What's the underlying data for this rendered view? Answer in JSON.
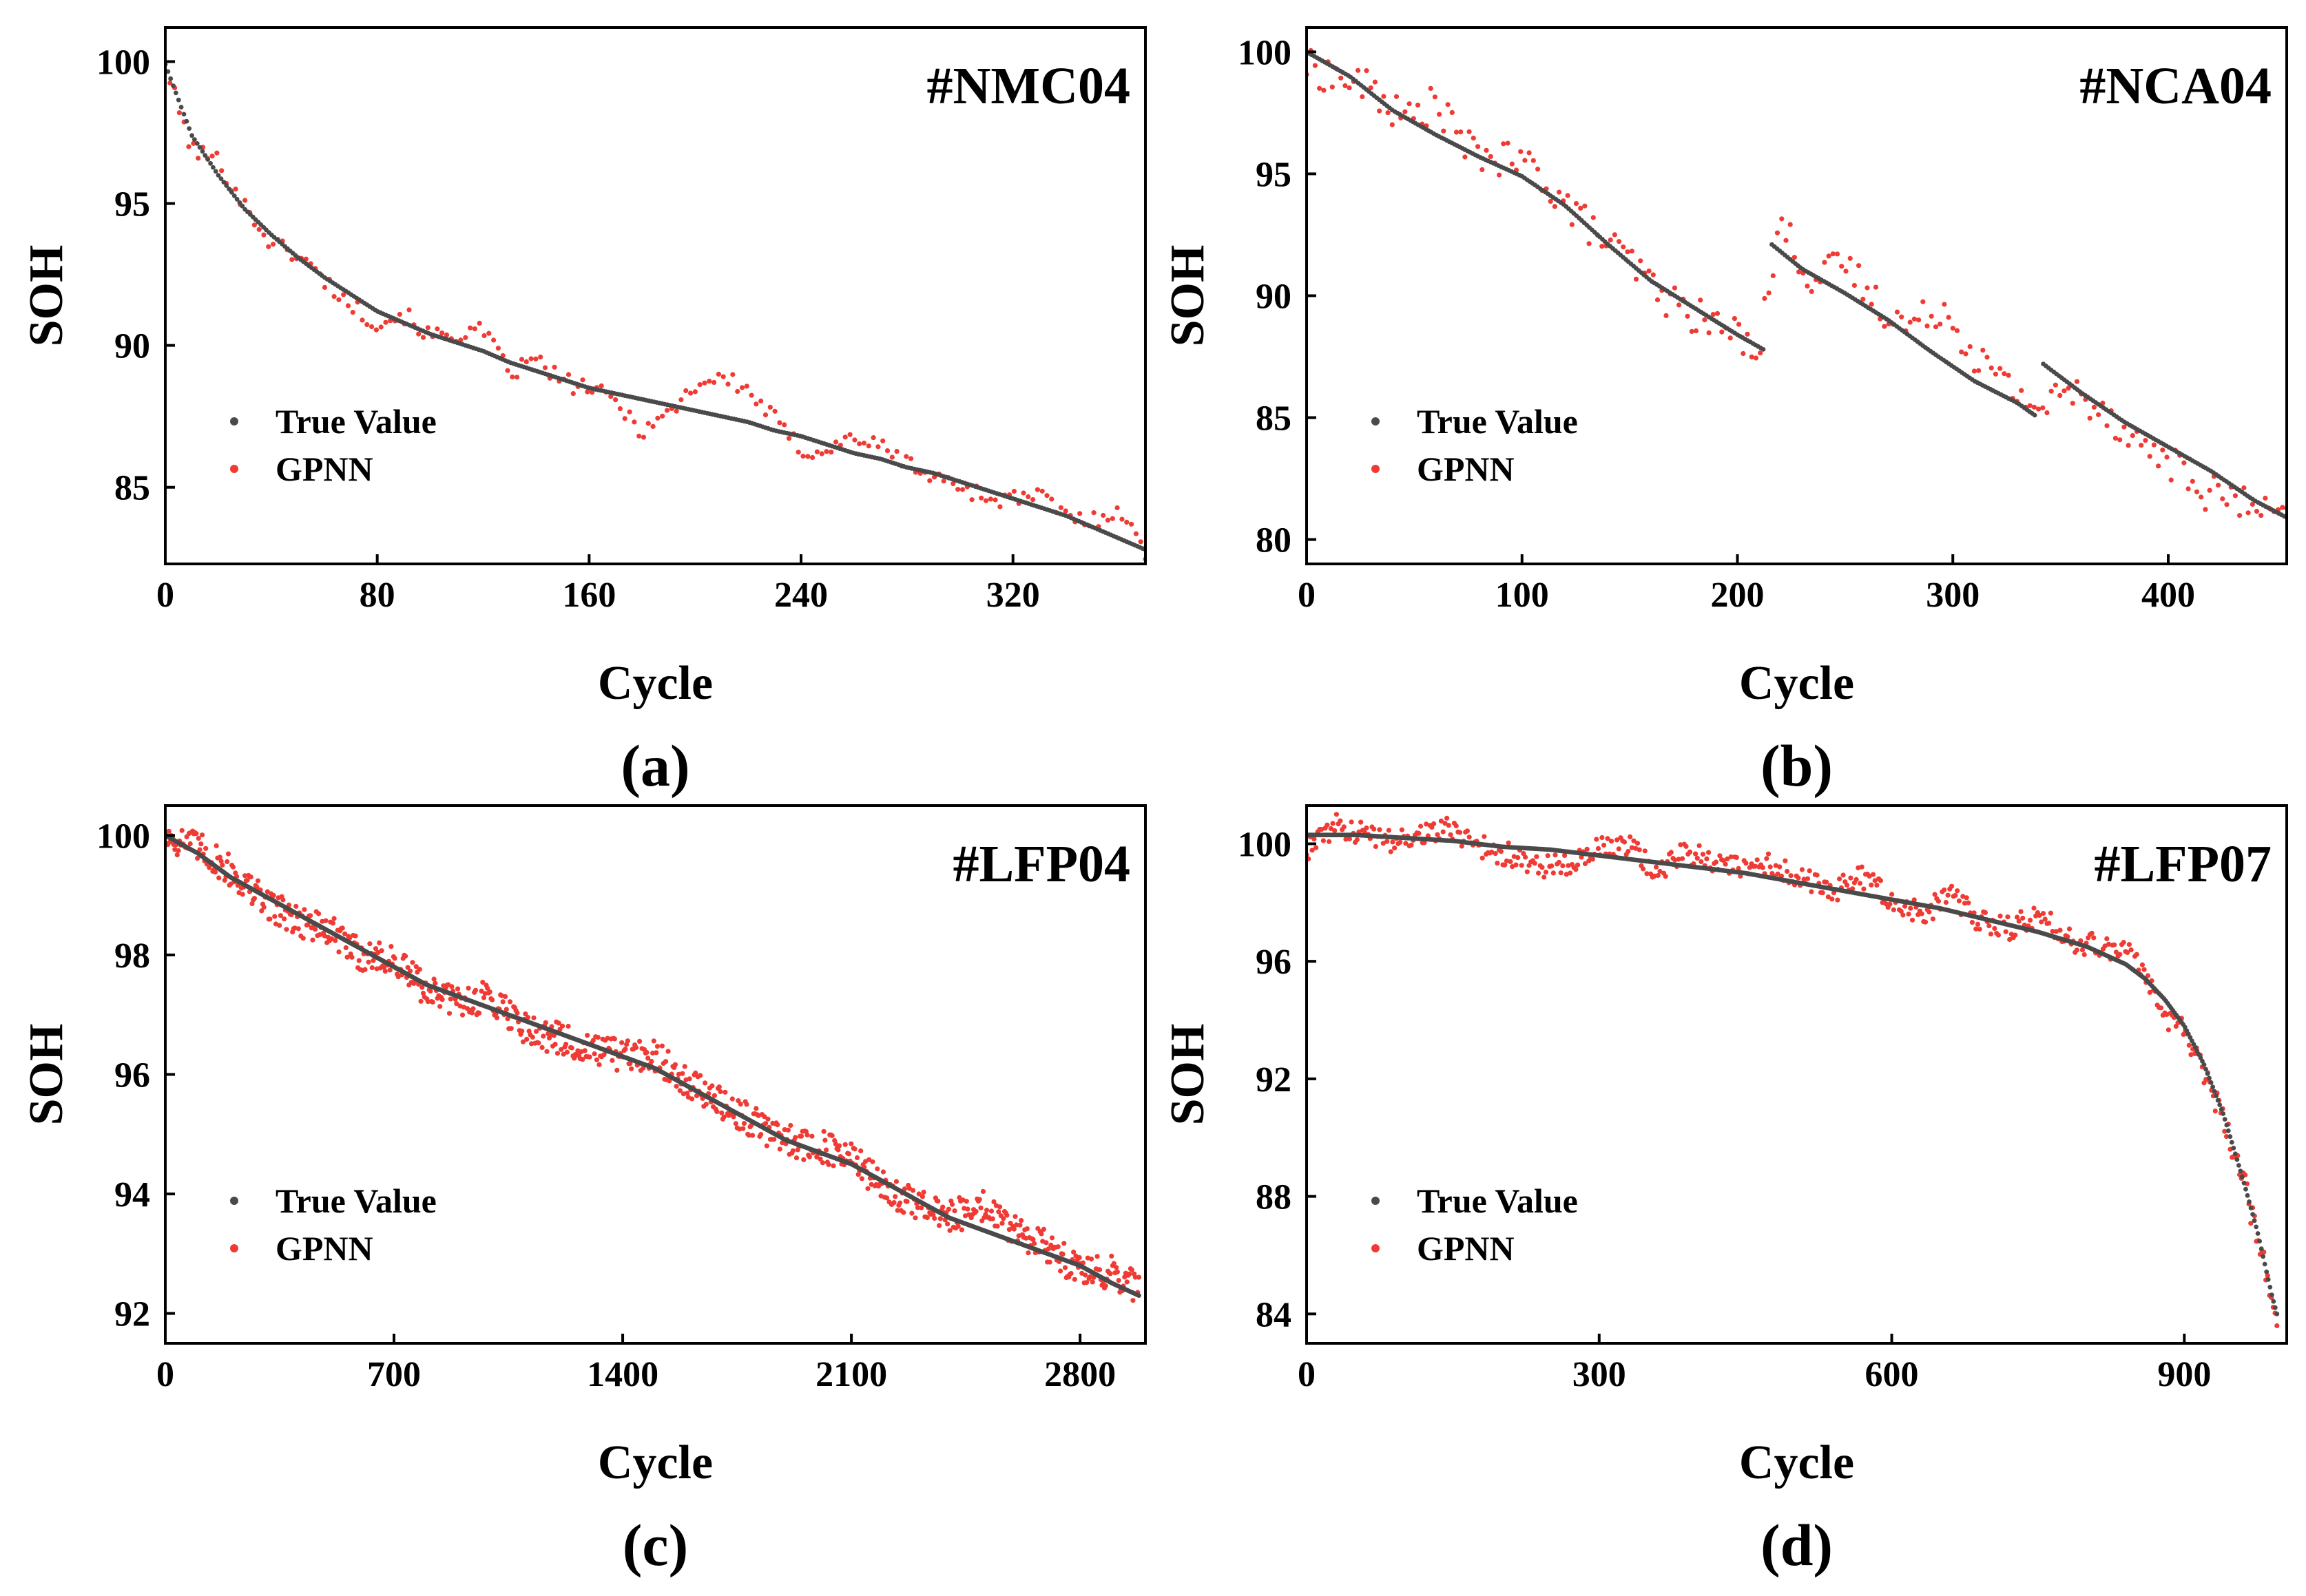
{
  "figure": {
    "colors": {
      "true_value": "#4a4a4a",
      "gpnn": "#f03a34",
      "axes": "#000000"
    }
  },
  "chart_data": [
    {
      "type": "scatter",
      "panel": "(a)",
      "title": "#NMC04",
      "xlabel": "Cycle",
      "ylabel": "SOH",
      "xlim": [
        0,
        370
      ],
      "ylim": [
        82.3,
        101.2
      ],
      "xticks": [
        0,
        80,
        160,
        240,
        320
      ],
      "yticks": [
        85,
        90,
        95,
        100
      ],
      "legend": {
        "position": "lower-left",
        "entries": [
          "True Value",
          "GPNN"
        ]
      },
      "series": [
        {
          "name": "True Value",
          "marker": "dot",
          "x": [
            0,
            10,
            20,
            30,
            40,
            50,
            60,
            70,
            80,
            90,
            100,
            110,
            120,
            130,
            140,
            150,
            160,
            170,
            180,
            190,
            200,
            210,
            220,
            230,
            240,
            250,
            260,
            270,
            280,
            290,
            300,
            310,
            320,
            330,
            340,
            350,
            360,
            370
          ],
          "values": [
            99.9,
            97.4,
            96.0,
            94.8,
            93.9,
            93.1,
            92.4,
            91.8,
            91.2,
            90.8,
            90.4,
            90.1,
            89.8,
            89.4,
            89.1,
            88.8,
            88.5,
            88.3,
            88.1,
            87.9,
            87.7,
            87.5,
            87.3,
            87.0,
            86.8,
            86.5,
            86.2,
            86.0,
            85.7,
            85.5,
            85.2,
            84.9,
            84.6,
            84.3,
            84.0,
            83.6,
            83.2,
            82.8
          ]
        },
        {
          "name": "GPNN",
          "marker": "dot",
          "x": [
            0,
            10,
            20,
            30,
            40,
            50,
            60,
            70,
            80,
            90,
            100,
            110,
            120,
            130,
            140,
            150,
            160,
            170,
            180,
            190,
            200,
            210,
            220,
            230,
            240,
            250,
            260,
            270,
            280,
            290,
            300,
            310,
            320,
            330,
            340,
            350,
            360,
            370
          ],
          "values": [
            99.8,
            96.9,
            96.5,
            94.9,
            93.6,
            93.2,
            92.3,
            91.4,
            90.8,
            91.1,
            90.3,
            90.4,
            90.5,
            89.0,
            89.5,
            88.7,
            88.5,
            88.0,
            87.0,
            87.6,
            88.6,
            88.9,
            88.4,
            87.4,
            86.3,
            86.3,
            86.8,
            86.4,
            85.9,
            85.3,
            85.1,
            84.6,
            84.6,
            84.7,
            84.0,
            83.8,
            84.3,
            82.6
          ]
        }
      ]
    },
    {
      "type": "scatter",
      "panel": "(b)",
      "title": "#NCA04",
      "xlabel": "Cycle",
      "ylabel": "SOH",
      "xlim": [
        0,
        455
      ],
      "ylim": [
        79.0,
        101.0
      ],
      "xticks": [
        0,
        100,
        200,
        300,
        400
      ],
      "yticks": [
        80,
        85,
        90,
        95,
        100
      ],
      "legend": {
        "position": "lower-left",
        "entries": [
          "True Value",
          "GPNN"
        ]
      },
      "series": [
        {
          "name": "True Value",
          "marker": "dot",
          "x": [
            0,
            20,
            40,
            60,
            80,
            100,
            120,
            140,
            160,
            180,
            200,
            212,
            216,
            230,
            250,
            270,
            290,
            310,
            330,
            338,
            342,
            360,
            380,
            400,
            420,
            440,
            455
          ],
          "values": [
            100.0,
            99.0,
            97.6,
            96.6,
            95.7,
            94.9,
            93.7,
            92.1,
            90.6,
            89.5,
            88.4,
            87.8,
            92.1,
            91.1,
            90.1,
            89.0,
            87.7,
            86.5,
            85.6,
            85.1,
            87.2,
            86.0,
            84.8,
            83.8,
            82.8,
            81.6,
            80.9
          ]
        },
        {
          "name": "GPNN",
          "marker": "dot",
          "x": [
            0,
            15,
            30,
            45,
            60,
            75,
            90,
            105,
            120,
            135,
            150,
            165,
            180,
            195,
            210,
            220,
            235,
            250,
            265,
            280,
            295,
            310,
            325,
            340,
            355,
            370,
            385,
            400,
            415,
            430,
            445,
            455
          ],
          "values": [
            99.4,
            98.9,
            98.5,
            97.2,
            97.9,
            96.0,
            95.6,
            95.3,
            93.8,
            92.5,
            91.4,
            90.0,
            89.2,
            88.6,
            88.0,
            93.0,
            90.6,
            91.3,
            89.7,
            88.7,
            89.6,
            87.6,
            86.3,
            85.4,
            86.1,
            85.4,
            84.0,
            83.3,
            82.0,
            81.7,
            81.0,
            80.7
          ]
        }
      ]
    },
    {
      "type": "scatter",
      "panel": "(c)",
      "title": "#LFP04",
      "xlabel": "Cycle",
      "ylabel": "SOH",
      "xlim": [
        0,
        3000
      ],
      "ylim": [
        91.5,
        100.5
      ],
      "xticks": [
        0,
        700,
        1400,
        2100,
        2800
      ],
      "yticks": [
        92,
        94,
        96,
        98,
        100
      ],
      "legend": {
        "position": "lower-left",
        "entries": [
          "True Value",
          "GPNN"
        ]
      },
      "series": [
        {
          "name": "True Value",
          "marker": "dot",
          "x": [
            0,
            100,
            200,
            300,
            400,
            500,
            600,
            700,
            800,
            900,
            1000,
            1100,
            1200,
            1300,
            1400,
            1500,
            1600,
            1700,
            1800,
            1900,
            2000,
            2100,
            2200,
            2300,
            2400,
            2500,
            2600,
            2700,
            2800,
            2900,
            2980
          ],
          "values": [
            100.0,
            99.7,
            99.3,
            99.0,
            98.7,
            98.4,
            98.1,
            97.8,
            97.5,
            97.3,
            97.1,
            96.9,
            96.7,
            96.5,
            96.3,
            96.1,
            95.8,
            95.5,
            95.2,
            94.9,
            94.7,
            94.5,
            94.2,
            93.9,
            93.6,
            93.4,
            93.2,
            93.0,
            92.8,
            92.5,
            92.3
          ]
        },
        {
          "name": "GPNN",
          "marker": "dot",
          "x": [
            0,
            100,
            200,
            300,
            400,
            500,
            600,
            700,
            800,
            900,
            1000,
            1100,
            1200,
            1300,
            1400,
            1500,
            1600,
            1700,
            1800,
            1900,
            2000,
            2100,
            2200,
            2300,
            2400,
            2500,
            2600,
            2700,
            2800,
            2900,
            2980
          ],
          "values": [
            100.0,
            99.8,
            99.4,
            98.9,
            98.6,
            98.4,
            98.0,
            97.9,
            97.4,
            97.2,
            97.3,
            96.8,
            96.6,
            96.4,
            96.3,
            96.3,
            95.9,
            95.5,
            95.2,
            94.9,
            94.8,
            94.6,
            94.1,
            93.8,
            93.6,
            93.8,
            93.4,
            93.1,
            92.7,
            92.7,
            92.4
          ]
        }
      ]
    },
    {
      "type": "scatter",
      "panel": "(d)",
      "title": "#LFP07",
      "xlabel": "Cycle",
      "ylabel": "SOH",
      "xlim": [
        0,
        1005
      ],
      "ylim": [
        83.0,
        101.3
      ],
      "xticks": [
        0,
        300,
        600,
        900
      ],
      "yticks": [
        84,
        88,
        92,
        96,
        100
      ],
      "legend": {
        "position": "lower-left",
        "entries": [
          "True Value",
          "GPNN"
        ]
      },
      "series": [
        {
          "name": "True Value",
          "marker": "dot",
          "x": [
            0,
            50,
            100,
            150,
            200,
            250,
            300,
            350,
            400,
            450,
            500,
            550,
            600,
            650,
            700,
            750,
            800,
            840,
            860,
            880,
            900,
            920,
            940,
            960,
            975,
            990,
            995
          ],
          "values": [
            100.3,
            100.3,
            100.2,
            100.1,
            99.9,
            99.8,
            99.6,
            99.4,
            99.2,
            99.0,
            98.7,
            98.4,
            98.1,
            97.8,
            97.4,
            97.0,
            96.5,
            95.9,
            95.4,
            94.7,
            93.8,
            92.5,
            90.8,
            88.6,
            86.8,
            84.6,
            84.0
          ]
        },
        {
          "name": "GPNN",
          "marker": "dot",
          "x": [
            0,
            30,
            60,
            90,
            120,
            150,
            180,
            210,
            240,
            270,
            300,
            330,
            360,
            390,
            420,
            450,
            480,
            510,
            540,
            570,
            600,
            630,
            660,
            690,
            720,
            750,
            780,
            810,
            840,
            860,
            880,
            900,
            920,
            940,
            960,
            975,
            990,
            995
          ],
          "values": [
            99.8,
            100.6,
            100.3,
            100.1,
            100.4,
            100.5,
            99.9,
            99.6,
            99.2,
            99.4,
            99.8,
            99.9,
            99.1,
            99.7,
            99.4,
            99.1,
            99.3,
            98.8,
            98.4,
            98.9,
            98.0,
            97.6,
            98.2,
            97.4,
            97.1,
            97.6,
            96.8,
            96.5,
            96.4,
            95.6,
            94.2,
            93.6,
            92.2,
            90.6,
            88.7,
            86.5,
            84.7,
            84.0
          ]
        }
      ]
    }
  ]
}
